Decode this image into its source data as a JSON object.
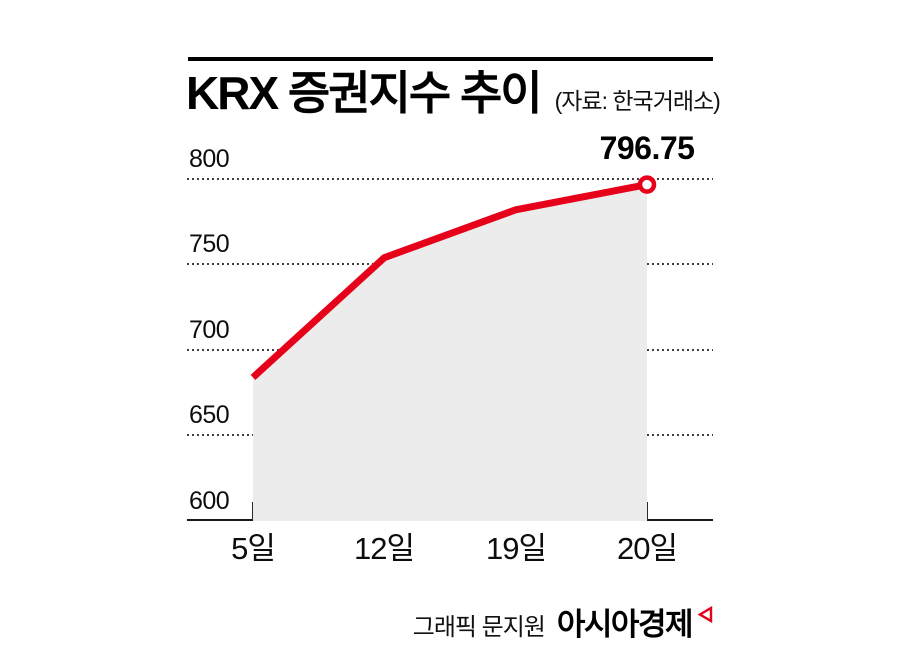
{
  "header": {
    "title": "KRX 증권지수 추이",
    "source": "(자료: 한국거래소)"
  },
  "chart_data": {
    "type": "line",
    "title": "KRX 증권지수 추이",
    "source_note": "(자료: 한국거래소)",
    "categories": [
      "5일",
      "12일",
      "19일",
      "20일"
    ],
    "values": [
      684,
      754,
      782,
      796.75
    ],
    "last_value_label": "796.75",
    "y_ticks": [
      800,
      750,
      700,
      650,
      600
    ],
    "ylim": [
      600,
      800
    ],
    "xlabel": "",
    "ylabel": "",
    "grid": "dotted horizontal",
    "legend_position": "none",
    "line_color": "#e60019",
    "area_color": "#ececec",
    "marker": "open circle on last point"
  },
  "footer": {
    "credit": "그래픽 문지원",
    "brand": "아시아경제"
  }
}
